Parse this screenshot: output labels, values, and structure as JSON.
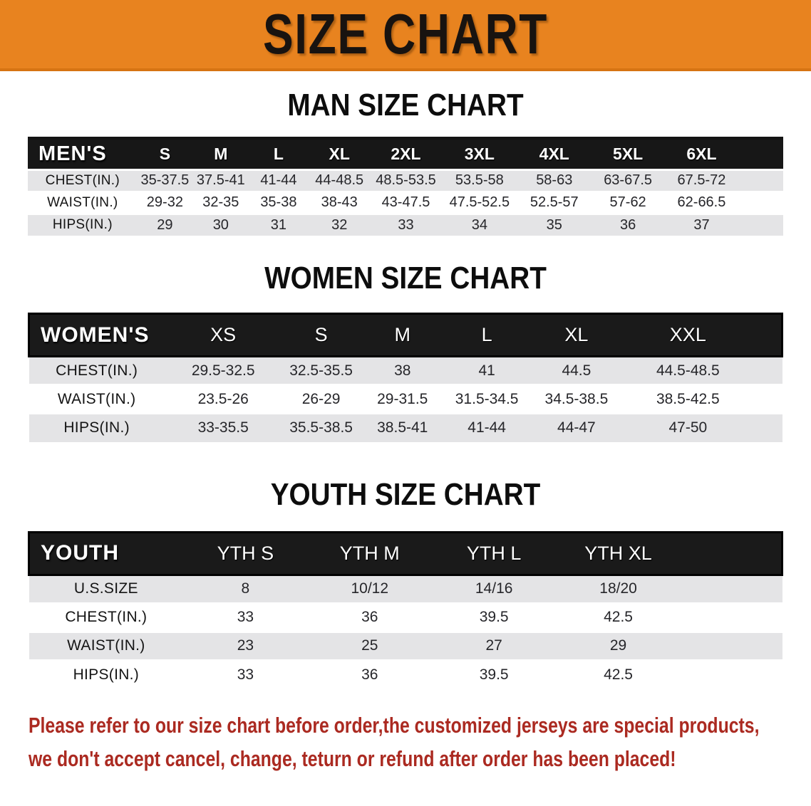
{
  "banner": {
    "title": "SIZE CHART"
  },
  "sections": {
    "men": {
      "heading": "MAN SIZE CHART"
    },
    "women": {
      "heading": "WOMEN SIZE CHART"
    },
    "youth": {
      "heading": "YOUTH SIZE CHART"
    }
  },
  "tables": {
    "men": {
      "label": "MEN'S",
      "columns": [
        "S",
        "M",
        "L",
        "XL",
        "2XL",
        "3XL",
        "4XL",
        "5XL",
        "6XL"
      ],
      "rows": [
        {
          "label": "CHEST(IN.)",
          "values": [
            "35-37.5",
            "37.5-41",
            "41-44",
            "44-48.5",
            "48.5-53.5",
            "53.5-58",
            "58-63",
            "63-67.5",
            "67.5-72"
          ]
        },
        {
          "label": "WAIST(IN.)",
          "values": [
            "29-32",
            "32-35",
            "35-38",
            "38-43",
            "43-47.5",
            "47.5-52.5",
            "52.5-57",
            "57-62",
            "62-66.5"
          ]
        },
        {
          "label": "HIPS(IN.)",
          "values": [
            "29",
            "30",
            "31",
            "32",
            "33",
            "34",
            "35",
            "36",
            "37"
          ]
        }
      ]
    },
    "women": {
      "label": "WOMEN'S",
      "columns": [
        "XS",
        "S",
        "M",
        "L",
        "XL",
        "XXL"
      ],
      "rows": [
        {
          "label": "CHEST(IN.)",
          "values": [
            "29.5-32.5",
            "32.5-35.5",
            "38",
            "41",
            "44.5",
            "44.5-48.5"
          ]
        },
        {
          "label": "WAIST(IN.)",
          "values": [
            "23.5-26",
            "26-29",
            "29-31.5",
            "31.5-34.5",
            "34.5-38.5",
            "38.5-42.5"
          ]
        },
        {
          "label": "HIPS(IN.)",
          "values": [
            "33-35.5",
            "35.5-38.5",
            "38.5-41",
            "41-44",
            "44-47",
            "47-50"
          ]
        }
      ]
    },
    "youth": {
      "label": "YOUTH",
      "columns": [
        "YTH S",
        "YTH M",
        "YTH L",
        "YTH XL"
      ],
      "rows": [
        {
          "label": "U.S.SIZE",
          "values": [
            "8",
            "10/12",
            "14/16",
            "18/20"
          ]
        },
        {
          "label": "CHEST(IN.)",
          "values": [
            "33",
            "36",
            "39.5",
            "42.5"
          ]
        },
        {
          "label": "WAIST(IN.)",
          "values": [
            "23",
            "25",
            "27",
            "29"
          ]
        },
        {
          "label": "HIPS(IN.)",
          "values": [
            "33",
            "36",
            "39.5",
            "42.5"
          ]
        }
      ]
    }
  },
  "footer": {
    "line1": "Please refer to our size chart before order,the customized jerseys are special products,",
    "line2": "we don't accept cancel, change, teturn or refund after order has been placed!"
  },
  "colors": {
    "banner_orange": "#e8831f",
    "banner_border": "#d67413",
    "header_black": "#171717",
    "row_gray": "#e4e4e6",
    "notice_red": "#ab2a21"
  }
}
